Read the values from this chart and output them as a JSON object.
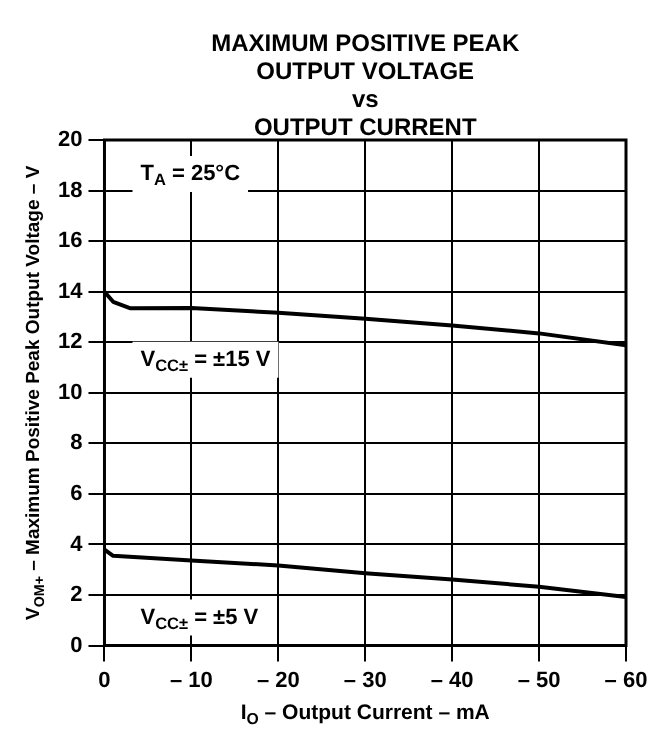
{
  "chart_data": {
    "type": "line",
    "title": "MAXIMUM POSITIVE PEAK\nOUTPUT VOLTAGE\nvs\nOUTPUT CURRENT",
    "xlabel": "I$_{O}$ – Output Current – mA",
    "ylabel": "V$_{OM+}$ – Maximum Positive Peak Output Voltage – V",
    "series": [
      {
        "color": "#000000",
        "x": [
          0,
          -1,
          -3,
          -10,
          -20,
          -30,
          -40,
          -50,
          -60
        ],
        "values": [
          14.0,
          13.6,
          13.34,
          13.35,
          13.17,
          12.93,
          12.66,
          12.35,
          11.88
        ]
      },
      {
        "color": "#000000",
        "x": [
          0,
          -1,
          -10,
          -20,
          -30,
          -40,
          -50,
          -60
        ],
        "values": [
          3.8,
          3.55,
          3.37,
          3.17,
          2.86,
          2.61,
          2.33,
          1.92
        ]
      }
    ],
    "annotations": [
      "T$_{A}$ = 25°C",
      "V$_{CC±}$ = ±15 V",
      "V$_{CC±}$ = ±5 V"
    ],
    "xlim": [
      0,
      -60
    ],
    "ylim": [
      0,
      20
    ],
    "xticks": [
      0,
      {
        "value": -10,
        "label": "– 10"
      },
      {
        "value": -20,
        "label": "– 20"
      },
      {
        "value": -30,
        "label": "– 30"
      },
      {
        "value": -40,
        "label": "– 40"
      },
      {
        "value": -50,
        "label": "– 50"
      },
      {
        "value": -60,
        "label": "– 60"
      }
    ],
    "yticks": [
      0,
      2,
      4,
      6,
      8,
      10,
      12,
      14,
      16,
      18,
      20
    ],
    "grid": true,
    "marker": "none",
    "line_style": "solid"
  }
}
